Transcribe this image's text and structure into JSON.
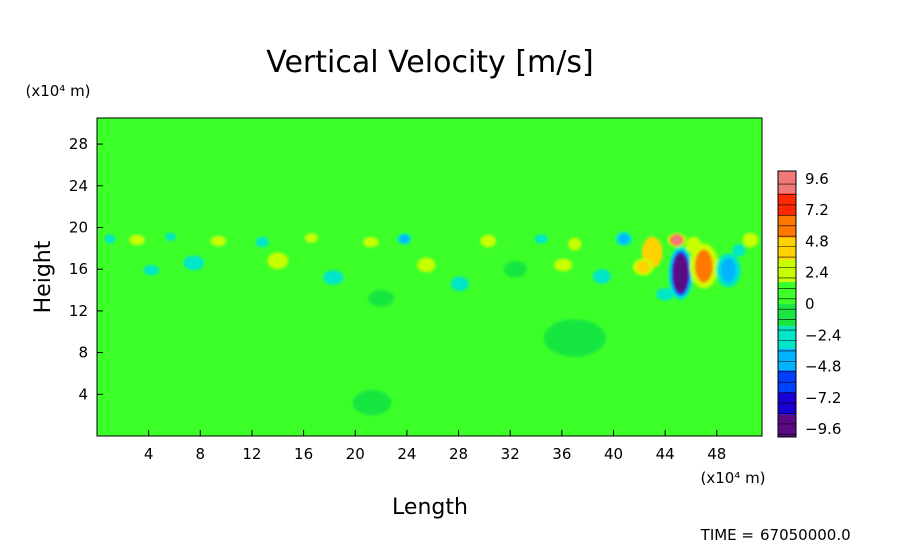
{
  "chart_data": {
    "type": "heatmap",
    "title": "Vertical Velocity [m/s]",
    "xlabel": "Length",
    "ylabel": "Height",
    "x_unit": "(x10⁴ m)",
    "y_unit": "(x10⁴ m)",
    "x_ticks": [
      4,
      8,
      12,
      16,
      20,
      24,
      28,
      32,
      36,
      40,
      44,
      48
    ],
    "y_ticks": [
      4,
      8,
      12,
      16,
      20,
      24,
      28
    ],
    "xlim": [
      0,
      51.5
    ],
    "ylim": [
      0,
      30.5
    ],
    "colorbar": {
      "ticks": [
        9.6,
        7.2,
        4.8,
        2.4,
        0,
        -2.4,
        -4.8,
        -7.2,
        -9.6
      ],
      "tick_labels": [
        "9.6",
        "7.2",
        "4.8",
        "2.4",
        "0",
        "−2.4",
        "−4.8",
        "−7.2",
        "−9.6"
      ],
      "range": [
        -10.2,
        10.2
      ],
      "colors": [
        "#5a0a82",
        "#1a00d4",
        "#0040ff",
        "#00b4ff",
        "#00e6c8",
        "#19e640",
        "#3cff2a",
        "#c8ff00",
        "#ffd200",
        "#ff7800",
        "#ff2800",
        "#f07878"
      ]
    },
    "background_value": 0.3,
    "features": [
      {
        "x": 45.2,
        "y": 15.6,
        "value": -9.6,
        "rx": 0.6,
        "ry": 1.9
      },
      {
        "x": 47.0,
        "y": 16.3,
        "value": 6.5,
        "rx": 0.7,
        "ry": 1.6
      },
      {
        "x": 48.9,
        "y": 15.9,
        "value": -4.2,
        "rx": 0.6,
        "ry": 1.2
      },
      {
        "x": 44.9,
        "y": 18.8,
        "value": 8.6,
        "rx": 0.45,
        "ry": 0.5
      },
      {
        "x": 43.0,
        "y": 17.6,
        "value": 3.4,
        "rx": 0.8,
        "ry": 1.5
      },
      {
        "x": 42.3,
        "y": 16.2,
        "value": 4.8,
        "rx": 0.5,
        "ry": 0.6
      },
      {
        "x": 46.2,
        "y": 18.3,
        "value": 3.0,
        "rx": 0.6,
        "ry": 0.8
      },
      {
        "x": 40.8,
        "y": 18.9,
        "value": -4.6,
        "rx": 0.4,
        "ry": 0.5
      },
      {
        "x": 50.6,
        "y": 18.8,
        "value": 2.6,
        "rx": 0.6,
        "ry": 0.7
      },
      {
        "x": 49.7,
        "y": 17.8,
        "value": -2.6,
        "rx": 0.5,
        "ry": 0.6
      },
      {
        "x": 1.0,
        "y": 18.9,
        "value": -3.4,
        "rx": 0.4,
        "ry": 0.45
      },
      {
        "x": 3.1,
        "y": 18.8,
        "value": 2.4,
        "rx": 0.6,
        "ry": 0.5
      },
      {
        "x": 5.7,
        "y": 19.1,
        "value": -2.6,
        "rx": 0.4,
        "ry": 0.4
      },
      {
        "x": 9.4,
        "y": 18.7,
        "value": 2.6,
        "rx": 0.6,
        "ry": 0.5
      },
      {
        "x": 12.8,
        "y": 18.6,
        "value": -2.4,
        "rx": 0.5,
        "ry": 0.5
      },
      {
        "x": 16.6,
        "y": 19.0,
        "value": 2.5,
        "rx": 0.5,
        "ry": 0.45
      },
      {
        "x": 23.8,
        "y": 18.9,
        "value": -3.6,
        "rx": 0.35,
        "ry": 0.4
      },
      {
        "x": 21.2,
        "y": 18.6,
        "value": 2.4,
        "rx": 0.6,
        "ry": 0.5
      },
      {
        "x": 30.3,
        "y": 18.7,
        "value": 2.8,
        "rx": 0.6,
        "ry": 0.6
      },
      {
        "x": 34.4,
        "y": 18.9,
        "value": -2.6,
        "rx": 0.5,
        "ry": 0.45
      },
      {
        "x": 37.0,
        "y": 18.4,
        "value": 2.4,
        "rx": 0.5,
        "ry": 0.6
      },
      {
        "x": 7.5,
        "y": 16.6,
        "value": -2.2,
        "rx": 0.8,
        "ry": 0.7
      },
      {
        "x": 4.2,
        "y": 15.9,
        "value": -2.0,
        "rx": 0.6,
        "ry": 0.5
      },
      {
        "x": 14.0,
        "y": 16.8,
        "value": 1.8,
        "rx": 0.8,
        "ry": 0.8
      },
      {
        "x": 18.3,
        "y": 15.2,
        "value": -1.8,
        "rx": 0.8,
        "ry": 0.7
      },
      {
        "x": 25.5,
        "y": 16.4,
        "value": 2.0,
        "rx": 0.7,
        "ry": 0.7
      },
      {
        "x": 28.1,
        "y": 14.6,
        "value": -2.0,
        "rx": 0.7,
        "ry": 0.7
      },
      {
        "x": 32.4,
        "y": 16.0,
        "value": -1.6,
        "rx": 0.9,
        "ry": 0.8
      },
      {
        "x": 36.1,
        "y": 16.4,
        "value": 1.8,
        "rx": 0.7,
        "ry": 0.6
      },
      {
        "x": 39.1,
        "y": 15.3,
        "value": -2.0,
        "rx": 0.7,
        "ry": 0.7
      },
      {
        "x": 11.0,
        "y": 13.9,
        "value": 1.4,
        "rx": 0.9,
        "ry": 0.8
      },
      {
        "x": 22.0,
        "y": 13.2,
        "value": -1.4,
        "rx": 1.0,
        "ry": 0.8
      },
      {
        "x": 29.7,
        "y": 12.5,
        "value": 1.4,
        "rx": 0.8,
        "ry": 0.7
      },
      {
        "x": 41.5,
        "y": 12.2,
        "value": 1.6,
        "rx": 0.8,
        "ry": 0.7
      },
      {
        "x": 44.0,
        "y": 13.6,
        "value": -1.8,
        "rx": 0.7,
        "ry": 0.6
      },
      {
        "x": 37.0,
        "y": 9.4,
        "value": -0.8,
        "rx": 2.4,
        "ry": 1.8
      },
      {
        "x": 13.2,
        "y": 9.8,
        "value": 0.9,
        "rx": 1.4,
        "ry": 1.2
      },
      {
        "x": 9.1,
        "y": 2.0,
        "value": 0.9,
        "rx": 1.2,
        "ry": 1.2
      },
      {
        "x": 21.3,
        "y": 3.2,
        "value": -0.7,
        "rx": 1.5,
        "ry": 1.2
      },
      {
        "x": 20.5,
        "y": 6.4,
        "value": 0.8,
        "rx": 0.5,
        "ry": 0.8
      }
    ],
    "grid": false
  },
  "footer": {
    "time_label": "TIME =",
    "time_value": "67050000.0"
  }
}
